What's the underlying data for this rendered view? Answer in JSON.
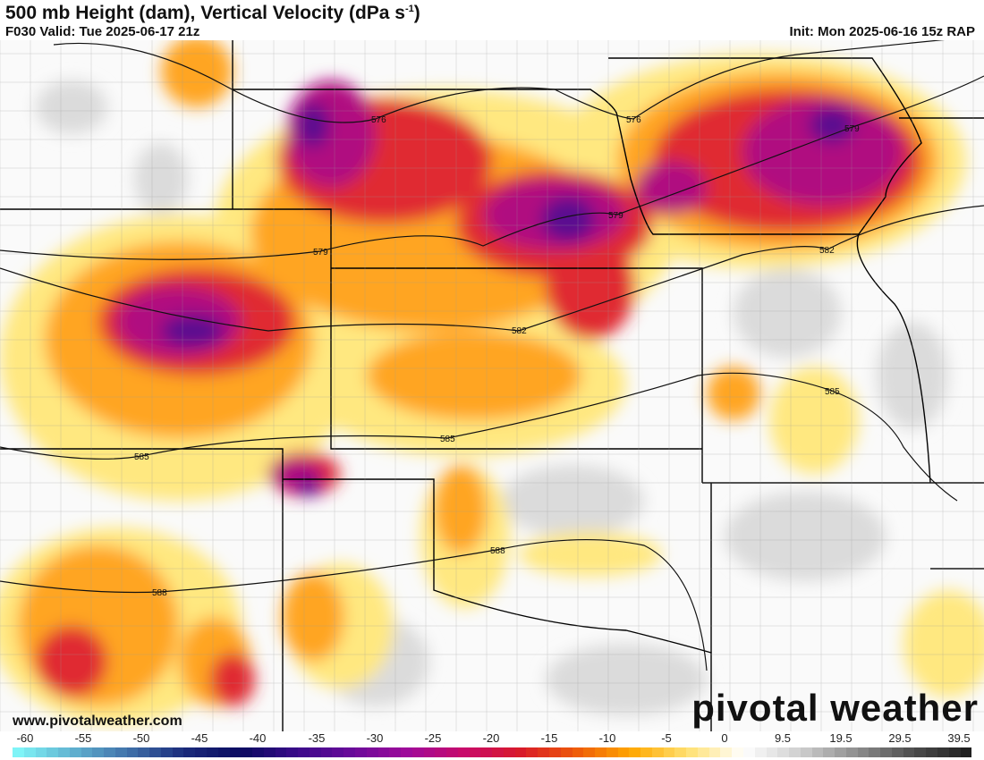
{
  "header": {
    "title": "500 mb Height (dam), Vertical Velocity (dPa s",
    "title_sup": "-1",
    "title_end": ")",
    "valid": "F030 Valid: Tue 2025-06-17 21z",
    "init": "Init: Mon 2025-06-16 15z RAP"
  },
  "footer": {
    "site": "www.pivotalweather.com",
    "logo": "pivotal weather"
  },
  "colorbar": {
    "labels": [
      "-60",
      "-55",
      "-50",
      "-45",
      "-40",
      "-35",
      "-30",
      "-25",
      "-20",
      "-15",
      "-10",
      "-5",
      "0",
      "9.5",
      "19.5",
      "29.5",
      "39.5"
    ],
    "stops": [
      "#7ff4f7",
      "#5fb0cf",
      "#3f6fa8",
      "#1a2a7a",
      "#0a0a60",
      "#3a0a8a",
      "#6a0a9a",
      "#a00a9a",
      "#c80a6a",
      "#d81a2a",
      "#ee5a08",
      "#ffa800",
      "#ffe070",
      "#ffffff",
      "#d0d0d0",
      "#909090",
      "#505050",
      "#202020"
    ]
  },
  "contours": [
    {
      "label": "576"
    },
    {
      "label": "579"
    },
    {
      "label": "582"
    },
    {
      "label": "585"
    },
    {
      "label": "588"
    }
  ]
}
